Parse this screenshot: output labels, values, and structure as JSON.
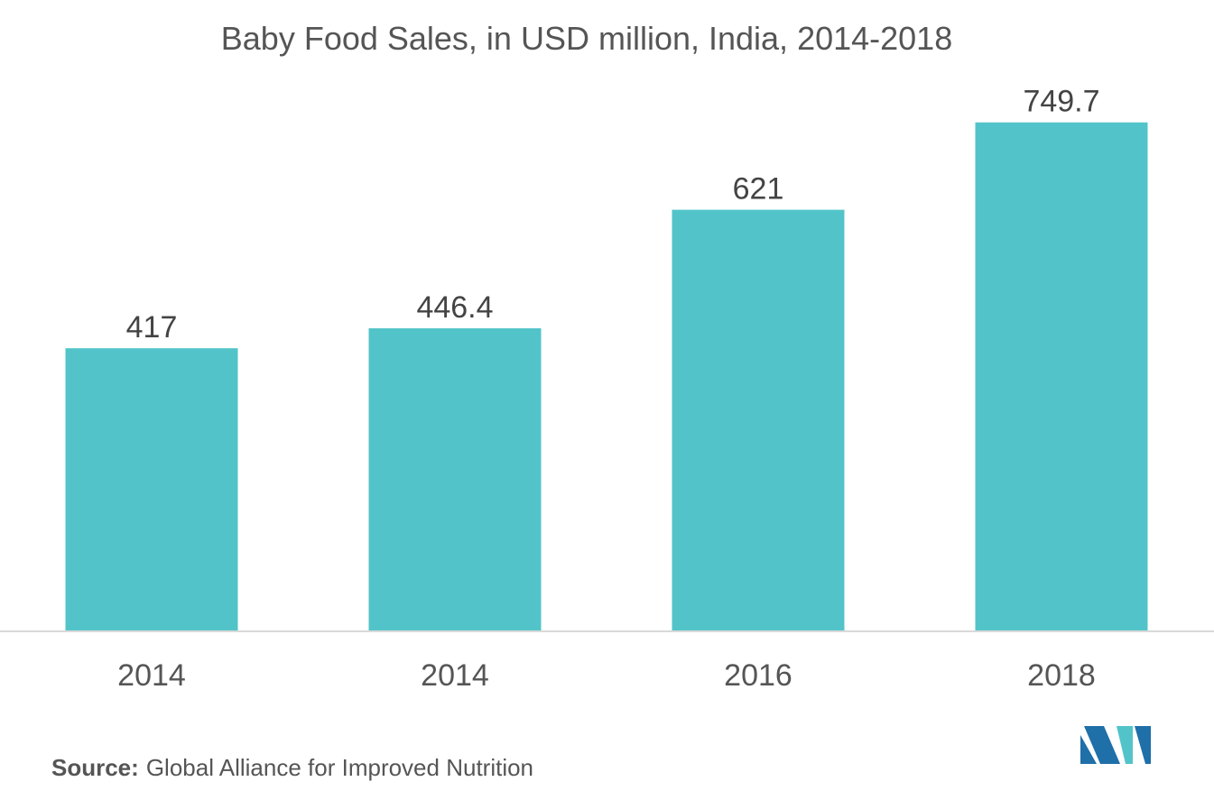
{
  "chart_data": {
    "type": "bar",
    "title": "Baby Food Sales, in USD million, India, 2014-2018",
    "categories": [
      "2014",
      "2014",
      "2016",
      "2018"
    ],
    "values": [
      417,
      446.4,
      621,
      749.7
    ],
    "value_labels": [
      "417",
      "446.4",
      "621",
      "749.7"
    ],
    "xlabel": "",
    "ylabel": "",
    "ylim": [
      0,
      930
    ],
    "grid": false,
    "legend": "none",
    "bar_color": "#52c4c9",
    "axis_color": "#d9d9d9"
  },
  "source": {
    "label": "Source:",
    "text": "Global Alliance for Improved Nutrition"
  },
  "logo": {
    "icon": "mordor-logo-icon",
    "colors": [
      "#1f6fa8",
      "#52c4c9"
    ]
  }
}
